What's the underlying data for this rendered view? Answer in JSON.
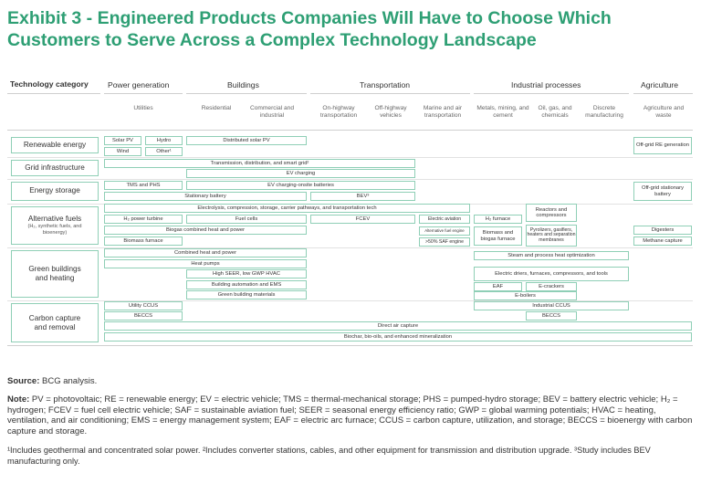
{
  "title": "Exhibit 3 - Engineered Products Companies Will Have to Choose Which Customers to Serve Across a Complex Technology Landscape",
  "header": {
    "tech_category": "Technology category",
    "sections": [
      "Power generation",
      "Buildings",
      "Transportation",
      "Industrial processes",
      "Agriculture"
    ],
    "subcols": [
      "Utilities",
      "Residential",
      "Commercial and industrial",
      "On-highway transportation",
      "Off-highway vehicles",
      "Marine and air transportation",
      "Metals, mining, and cement",
      "Oil, gas, and chemicals",
      "Discrete manufacturing",
      "Agriculture and waste"
    ]
  },
  "rows": [
    {
      "label": "Renewable energy",
      "sub": ""
    },
    {
      "label": "Grid infrastructure",
      "sub": ""
    },
    {
      "label": "Energy storage",
      "sub": ""
    },
    {
      "label": "Alternative fuels",
      "sub": "(H₂, synthetic fuels, and bioenergy)"
    },
    {
      "label": "Green buildings and heating",
      "sub": ""
    },
    {
      "label": "Carbon capture and removal",
      "sub": ""
    }
  ],
  "boxes": {
    "solar_pv": "Solar PV",
    "hydro": "Hydro",
    "wind": "Wind",
    "other": "Other¹",
    "dist_solar": "Distributed solar PV",
    "offgrid_re": "Off-grid RE generation",
    "tdsg": "Transmission, distribution, and smart grid²",
    "ev_charging": "EV charging",
    "tms_phs": "TMS and PHS",
    "ev_batteries": "EV charging-onsite batteries",
    "stationary": "Stationary battery",
    "bev": "BEV³",
    "offgrid_storage": "Off-grid stationary battery",
    "electrolysis": "Electrolysis, compression, storage, carrier pathways, and transportation tech",
    "reactors": "Reactors and compressors",
    "h2_turbine": "H₂ power turbine",
    "fuel_cells": "Fuel cells",
    "fcev": "FCEV",
    "electric_aviation": "Electric aviation",
    "h2_furnace": "H₂ furnace",
    "pyrolizers": "Pyrolizers, gasifiers, heaters and separation membranes",
    "digesters": "Digesters",
    "biogas_chp": "Biogas combined heat and power",
    "alt_fuel_engine": "Alternative fuel engine",
    "biomass_biogas": "Biomass and biogas furnace",
    "biomass_furnace": "Biomass furnace",
    "saf": ">50% SAF engine",
    "methane": "Methane capture",
    "chp": "Combined heat and power",
    "steam": "Steam and process heat optimization",
    "heat_pumps": "Heat pumps",
    "hvac": "High SEER, low GWP HVAC",
    "dryers": "Electric driers, furnaces, compressors, and tools",
    "bems": "Building automation and EMS",
    "eaf": "EAF",
    "ecrackers": "E-crackers",
    "green_materials": "Green building materials",
    "eboilers": "E-boilers",
    "utility_ccus": "Utility CCUS",
    "industrial_ccus": "Industrial CCUS",
    "beccs1": "BECCS",
    "beccs2": "BECCS",
    "dac": "Direct air capture",
    "biochar": "Biochar, bio-oils, and enhanced mineralization"
  },
  "footer": {
    "source_label": "Source:",
    "source": "BCG analysis.",
    "note_label": "Note:",
    "note": "PV = photovoltaic; RE = renewable energy; EV = electric vehicle; TMS = thermal-mechanical storage; PHS = pumped-hydro storage; BEV = battery electric vehicle; H₂ = hydrogen; FCEV = fuel cell electric vehicle; SAF = sustainable aviation fuel; SEER = seasonal energy efficiency ratio; GWP = global warming potentials; HVAC = heating, ventilation, and air conditioning; EMS = energy management system; EAF = electric arc furnace; CCUS = carbon capture, utilization, and storage; BECCS = bioenergy with carbon capture and storage.",
    "footnotes": "¹Includes geothermal and concentrated solar power. ²Includes converter stations, cables, and other equipment for transmission and distribution upgrade. ³Study includes BEV manufacturing only."
  }
}
